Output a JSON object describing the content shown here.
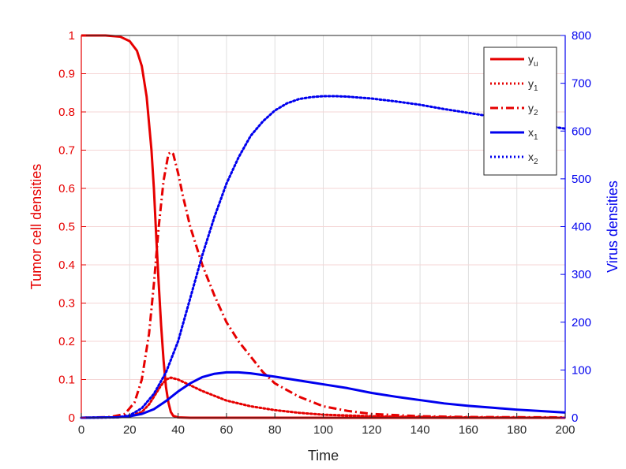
{
  "chart_data": {
    "type": "line",
    "xlabel": "Time",
    "ylabel_left": "Tumor cell densities",
    "ylabel_right": "Virus densities",
    "xlim": [
      0,
      200
    ],
    "ylim_left": [
      0,
      1
    ],
    "ylim_right": [
      0,
      800
    ],
    "xticks": [
      0,
      20,
      40,
      60,
      80,
      100,
      120,
      140,
      160,
      180,
      200
    ],
    "yticks_left": [
      0,
      0.1,
      0.2,
      0.3,
      0.4,
      0.5,
      0.6,
      0.7,
      0.8,
      0.9,
      1
    ],
    "yticks_right": [
      0,
      100,
      200,
      300,
      400,
      500,
      600,
      700,
      800
    ],
    "grid": true,
    "legend_position": "top-right",
    "colors": {
      "left_axis": "#e60000",
      "right_axis": "#0000ee"
    },
    "series": [
      {
        "name": "y",
        "subscript": "u",
        "axis": "left",
        "color": "#e60000",
        "style": "solid",
        "points": [
          [
            0,
            1
          ],
          [
            10,
            1
          ],
          [
            16,
            0.997
          ],
          [
            20,
            0.985
          ],
          [
            23,
            0.96
          ],
          [
            25,
            0.92
          ],
          [
            27,
            0.84
          ],
          [
            29,
            0.7
          ],
          [
            30,
            0.6
          ],
          [
            31,
            0.47
          ],
          [
            32,
            0.35
          ],
          [
            33,
            0.24
          ],
          [
            34,
            0.15
          ],
          [
            35,
            0.08
          ],
          [
            36,
            0.04
          ],
          [
            37,
            0.015
          ],
          [
            38,
            0.005
          ],
          [
            40,
            0.001
          ],
          [
            45,
            0
          ],
          [
            200,
            0
          ]
        ]
      },
      {
        "name": "y",
        "subscript": "1",
        "axis": "left",
        "color": "#e60000",
        "style": "dotted",
        "points": [
          [
            0,
            0
          ],
          [
            15,
            0.001
          ],
          [
            20,
            0.004
          ],
          [
            25,
            0.015
          ],
          [
            28,
            0.035
          ],
          [
            30,
            0.055
          ],
          [
            33,
            0.085
          ],
          [
            35,
            0.1
          ],
          [
            37,
            0.105
          ],
          [
            40,
            0.1
          ],
          [
            45,
            0.085
          ],
          [
            50,
            0.07
          ],
          [
            60,
            0.045
          ],
          [
            70,
            0.03
          ],
          [
            80,
            0.02
          ],
          [
            90,
            0.013
          ],
          [
            100,
            0.008
          ],
          [
            120,
            0.004
          ],
          [
            140,
            0.002
          ],
          [
            160,
            0.001
          ],
          [
            200,
            0
          ]
        ]
      },
      {
        "name": "y",
        "subscript": "2",
        "axis": "left",
        "color": "#e60000",
        "style": "dashdot",
        "points": [
          [
            0,
            0
          ],
          [
            12,
            0.002
          ],
          [
            18,
            0.01
          ],
          [
            22,
            0.04
          ],
          [
            25,
            0.1
          ],
          [
            28,
            0.22
          ],
          [
            30,
            0.35
          ],
          [
            32,
            0.5
          ],
          [
            34,
            0.62
          ],
          [
            36,
            0.69
          ],
          [
            37,
            0.695
          ],
          [
            38,
            0.69
          ],
          [
            40,
            0.64
          ],
          [
            42,
            0.58
          ],
          [
            45,
            0.5
          ],
          [
            50,
            0.4
          ],
          [
            55,
            0.32
          ],
          [
            60,
            0.25
          ],
          [
            65,
            0.2
          ],
          [
            70,
            0.16
          ],
          [
            75,
            0.12
          ],
          [
            80,
            0.09
          ],
          [
            90,
            0.055
          ],
          [
            100,
            0.03
          ],
          [
            110,
            0.018
          ],
          [
            120,
            0.01
          ],
          [
            140,
            0.004
          ],
          [
            160,
            0.002
          ],
          [
            200,
            0.001
          ]
        ]
      },
      {
        "name": "x",
        "subscript": "1",
        "axis": "right",
        "color": "#0000ee",
        "style": "solid",
        "points": [
          [
            0,
            0
          ],
          [
            15,
            1
          ],
          [
            20,
            3
          ],
          [
            25,
            8
          ],
          [
            30,
            18
          ],
          [
            35,
            35
          ],
          [
            40,
            55
          ],
          [
            45,
            72
          ],
          [
            50,
            85
          ],
          [
            55,
            92
          ],
          [
            60,
            95
          ],
          [
            65,
            95
          ],
          [
            70,
            93
          ],
          [
            80,
            86
          ],
          [
            90,
            78
          ],
          [
            100,
            70
          ],
          [
            110,
            62
          ],
          [
            120,
            52
          ],
          [
            130,
            44
          ],
          [
            140,
            37
          ],
          [
            150,
            30
          ],
          [
            160,
            25
          ],
          [
            170,
            21
          ],
          [
            180,
            17
          ],
          [
            190,
            14
          ],
          [
            200,
            11
          ]
        ]
      },
      {
        "name": "x",
        "subscript": "2",
        "axis": "right",
        "color": "#0000ee",
        "style": "dotted",
        "points": [
          [
            0,
            0
          ],
          [
            15,
            1
          ],
          [
            20,
            5
          ],
          [
            25,
            20
          ],
          [
            30,
            50
          ],
          [
            35,
            95
          ],
          [
            40,
            160
          ],
          [
            45,
            250
          ],
          [
            50,
            340
          ],
          [
            55,
            420
          ],
          [
            60,
            490
          ],
          [
            65,
            545
          ],
          [
            70,
            590
          ],
          [
            75,
            620
          ],
          [
            80,
            643
          ],
          [
            85,
            658
          ],
          [
            90,
            667
          ],
          [
            95,
            671
          ],
          [
            100,
            673
          ],
          [
            105,
            673
          ],
          [
            110,
            672
          ],
          [
            120,
            668
          ],
          [
            130,
            662
          ],
          [
            140,
            655
          ],
          [
            150,
            646
          ],
          [
            160,
            638
          ],
          [
            170,
            630
          ],
          [
            180,
            622
          ],
          [
            190,
            613
          ],
          [
            200,
            605
          ]
        ]
      }
    ]
  }
}
